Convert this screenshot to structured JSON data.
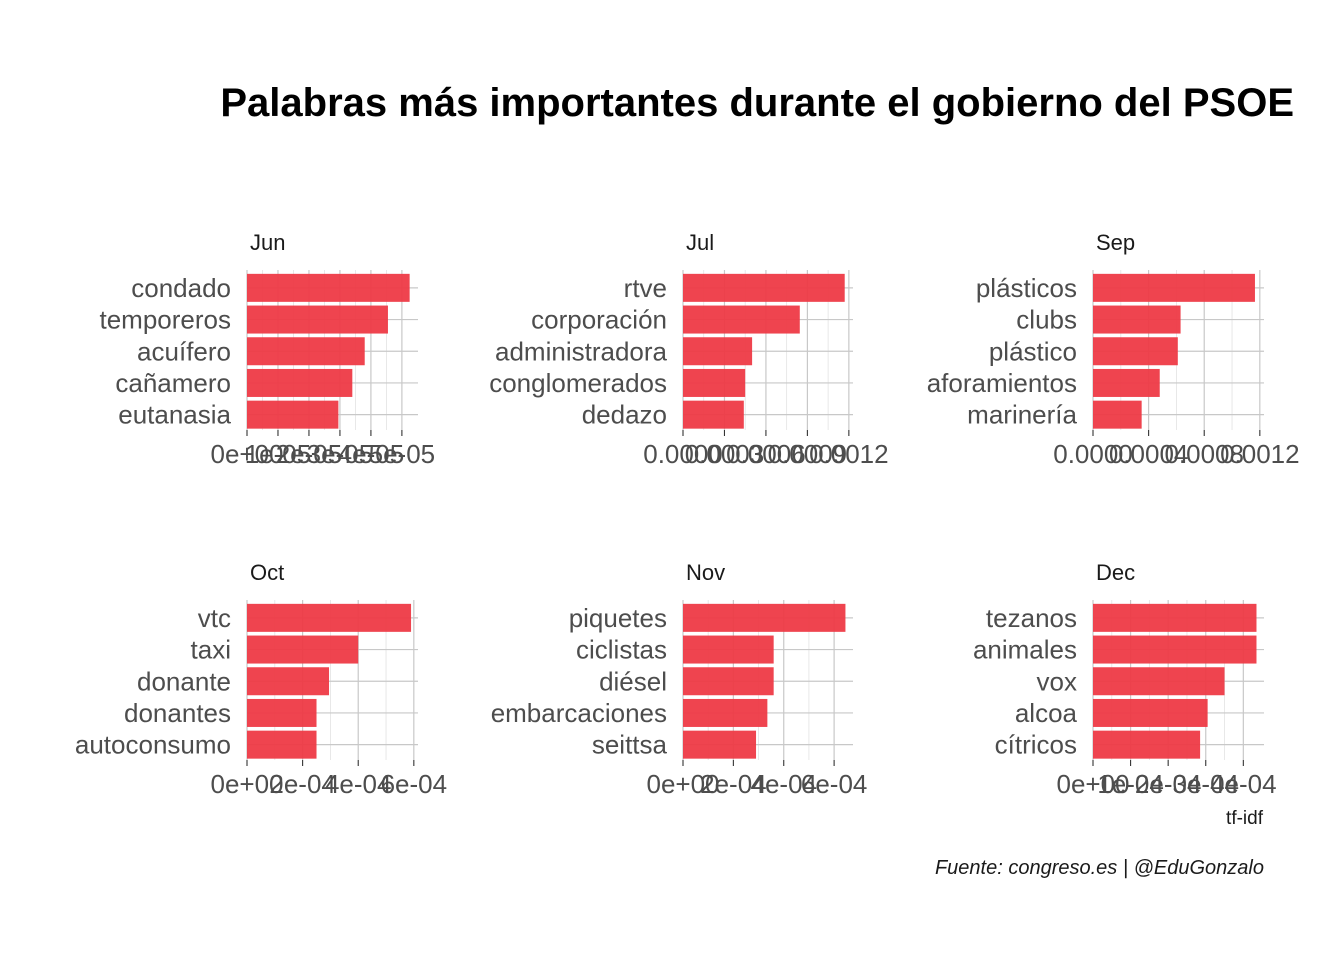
{
  "colors": {
    "bar": "#ee3a46"
  },
  "chart_data": {
    "type": "bar",
    "orientation": "horizontal",
    "title": "Palabras más importantes durante el gobierno del PSOE",
    "xlabel": "tf-idf",
    "caption": "Fuente: congreso.es | @EduGonzalo",
    "grid": true,
    "facets": [
      {
        "label": "Jun",
        "categories": [
          "condado",
          "temporeros",
          "acuífero",
          "cañamero",
          "eutanasia"
        ],
        "values": [
          5.25e-05,
          4.55e-05,
          3.8e-05,
          3.4e-05,
          2.95e-05
        ],
        "xlim": [
          0,
          5.52e-05
        ],
        "ticks": [
          0,
          1e-05,
          2e-05,
          3e-05,
          4e-05,
          5e-05
        ],
        "tick_labels": [
          "0e+00",
          "1e-05",
          "2e-05",
          "3e-05",
          "4e-05",
          "5e-05"
        ]
      },
      {
        "label": "Jul",
        "categories": [
          "rtve",
          "corporación",
          "administradora",
          "conglomerados",
          "dedazo"
        ],
        "values": [
          0.00117,
          0.000845,
          0.0005,
          0.00045,
          0.00044
        ],
        "xlim": [
          0,
          0.00123
        ],
        "ticks": [
          0,
          0.0003,
          0.0006,
          0.0009,
          0.0012
        ],
        "tick_labels": [
          "0.0000",
          "0.0003",
          "0.0006",
          "0.0009",
          "0.0012"
        ]
      },
      {
        "label": "Sep",
        "categories": [
          "plásticos",
          "clubs",
          "plástico",
          "aforamientos",
          "marinería"
        ],
        "values": [
          0.001165,
          0.00063,
          0.00061,
          0.00048,
          0.00035
        ],
        "xlim": [
          0,
          0.00123
        ],
        "ticks": [
          0,
          0.0004,
          0.0008,
          0.0012
        ],
        "tick_labels": [
          "0.0000",
          "0.0004",
          "0.0008",
          "0.0012"
        ]
      },
      {
        "label": "Oct",
        "categories": [
          "vtc",
          "taxi",
          "donante",
          "donantes",
          "autoconsumo"
        ],
        "values": [
          0.00059,
          0.0004,
          0.000295,
          0.00025,
          0.00025
        ],
        "xlim": [
          0,
          0.000615
        ],
        "ticks": [
          0,
          0.0002,
          0.0004,
          0.0006
        ],
        "tick_labels": [
          "0e+00",
          "2e-04",
          "4e-04",
          "6e-04"
        ]
      },
      {
        "label": "Nov",
        "categories": [
          "piquetes",
          "ciclistas",
          "diésel",
          "embarcaciones",
          "seittsa"
        ],
        "values": [
          0.000645,
          0.00036,
          0.00036,
          0.000335,
          0.00029
        ],
        "xlim": [
          0,
          0.000675
        ],
        "ticks": [
          0,
          0.0002,
          0.0004,
          0.0006
        ],
        "tick_labels": [
          "0e+00",
          "2e-04",
          "4e-04",
          "6e-04"
        ]
      },
      {
        "label": "Dec",
        "categories": [
          "tezanos",
          "animales",
          "vox",
          "alcoa",
          "cítricos"
        ],
        "values": [
          0.000435,
          0.000435,
          0.00035,
          0.000305,
          0.000285
        ],
        "xlim": [
          0,
          0.000455
        ],
        "ticks": [
          0,
          0.0001,
          0.0002,
          0.0003,
          0.0004
        ],
        "tick_labels": [
          "0e+00",
          "1e-04",
          "2e-04",
          "3e-04",
          "4e-04"
        ]
      }
    ]
  }
}
